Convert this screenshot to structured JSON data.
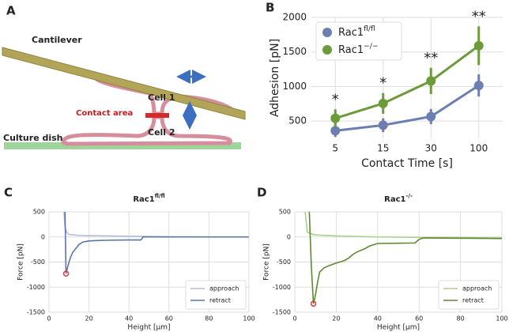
{
  "diagram": {
    "panel": "A",
    "labels": {
      "cantilever": "Cantilever",
      "cell1": "Cell 1",
      "contact": "Contact area",
      "cell2": "Cell 2",
      "dish": "Culture dish"
    }
  },
  "chart_data": [
    {
      "panel": "B",
      "type": "pointplot",
      "x_label": "Contact Time [s]",
      "y_label": "Adhesion [pN]",
      "categories": [
        "5",
        "15",
        "30",
        "100"
      ],
      "ylim": [
        250,
        2000
      ],
      "yticks": [
        500,
        1000,
        1500,
        2000
      ],
      "grid": true,
      "legend": "upper left",
      "series": [
        {
          "name": "Rac1",
          "name_sup": "fl/fl",
          "color": "#6c7fb0",
          "values": [
            360,
            440,
            565,
            1015
          ],
          "errors": [
            90,
            100,
            110,
            160
          ]
        },
        {
          "name": "Rac1",
          "name_sup": "−/−",
          "color": "#6d9b3b",
          "values": [
            540,
            755,
            1080,
            1590
          ],
          "errors": [
            130,
            150,
            190,
            280
          ]
        }
      ],
      "annotations": [
        "*",
        "*",
        "**",
        "**"
      ]
    },
    {
      "panel": "C",
      "type": "line",
      "title": "Rac1",
      "title_sup": "fl/fl",
      "x_label": "Height [μm]",
      "y_label": "Force [pN]",
      "xlim": [
        0,
        100
      ],
      "ylim": [
        -1500,
        500
      ],
      "xticks": [
        0,
        20,
        40,
        60,
        80,
        100
      ],
      "yticks": [
        -1500,
        -1000,
        -500,
        0,
        500
      ],
      "grid": true,
      "legend": "lower right",
      "series": [
        {
          "name": "approach",
          "color": "#b4bfd2",
          "x": [
            7.5,
            8,
            9,
            10,
            15,
            20,
            30,
            40,
            60,
            80,
            100
          ],
          "values": [
            500,
            200,
            80,
            50,
            30,
            25,
            20,
            15,
            5,
            0,
            0
          ]
        },
        {
          "name": "retract",
          "color": "#5b76a0",
          "x": [
            8,
            8.3,
            8.5,
            9,
            10,
            11,
            12,
            13,
            14,
            15,
            17,
            20,
            25,
            30,
            40,
            46,
            47,
            60,
            80,
            100
          ],
          "values": [
            500,
            -200,
            -730,
            -650,
            -500,
            -380,
            -300,
            -250,
            -200,
            -150,
            -100,
            -80,
            -70,
            -65,
            -60,
            -60,
            0,
            0,
            0,
            0
          ]
        }
      ],
      "min_marker": {
        "x": 8.5,
        "y": -730,
        "color": "#d63c3c"
      }
    },
    {
      "panel": "D",
      "type": "line",
      "title": "Rac1",
      "title_sup": "-/-",
      "x_label": "Height [μm]",
      "y_label": "Force [pN]",
      "xlim": [
        0,
        100
      ],
      "ylim": [
        -1500,
        500
      ],
      "xticks": [
        0,
        20,
        40,
        60,
        80,
        100
      ],
      "yticks": [
        -1500,
        -1000,
        -500,
        0,
        500
      ],
      "grid": true,
      "legend": "lower right",
      "series": [
        {
          "name": "approach",
          "color": "#a9d08e",
          "x": [
            5,
            6,
            8,
            10,
            20,
            40,
            60,
            80,
            100
          ],
          "values": [
            500,
            100,
            60,
            40,
            20,
            0,
            -10,
            -15,
            -20
          ]
        },
        {
          "name": "retract",
          "color": "#5e8a2f",
          "x": [
            7,
            8,
            9,
            10,
            11,
            12,
            14,
            16,
            18,
            20,
            24,
            26,
            28,
            30,
            34,
            36,
            40,
            50,
            58,
            60,
            62,
            80,
            100
          ],
          "values": [
            500,
            -600,
            -1330,
            -1150,
            -900,
            -700,
            -620,
            -580,
            -550,
            -520,
            -470,
            -420,
            -350,
            -300,
            -230,
            -180,
            -130,
            -125,
            -120,
            -50,
            -20,
            -25,
            -30
          ]
        }
      ],
      "min_marker": {
        "x": 9,
        "y": -1330,
        "color": "#d63c3c"
      }
    }
  ]
}
